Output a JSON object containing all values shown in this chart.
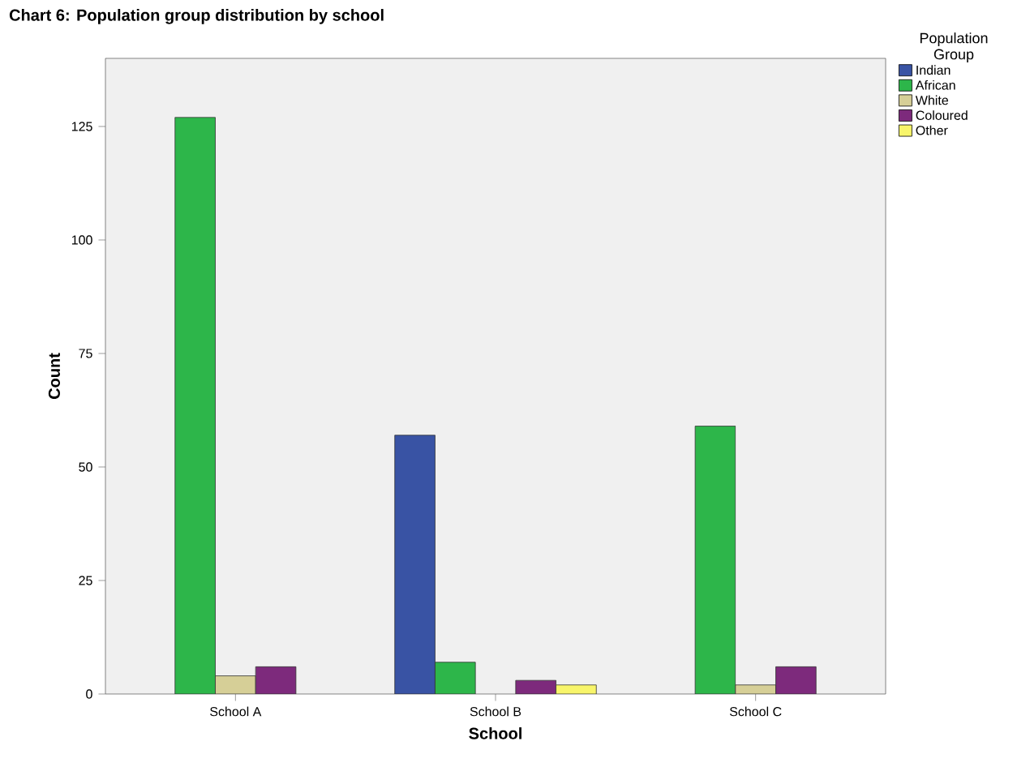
{
  "chart_data": {
    "type": "bar",
    "title": "Chart 6: Population group distribution by school",
    "xlabel": "School",
    "ylabel": "Count",
    "legend_title": "Population Group",
    "categories": [
      "School A",
      "School B",
      "School C"
    ],
    "series": [
      {
        "name": "Indian",
        "color": "#3953a4",
        "values": [
          null,
          57,
          null
        ]
      },
      {
        "name": "African",
        "color": "#2db64a",
        "values": [
          127,
          7,
          59
        ]
      },
      {
        "name": "White",
        "color": "#d6cf97",
        "values": [
          4,
          null,
          2
        ]
      },
      {
        "name": "Coloured",
        "color": "#7d2a7c",
        "values": [
          6,
          3,
          6
        ]
      },
      {
        "name": "Other",
        "color": "#f8f56a",
        "values": [
          null,
          2,
          null
        ]
      }
    ],
    "ylim": [
      0,
      140
    ],
    "yticks": [
      0,
      25,
      50,
      75,
      100,
      125
    ],
    "grid": false,
    "legend": "right"
  }
}
